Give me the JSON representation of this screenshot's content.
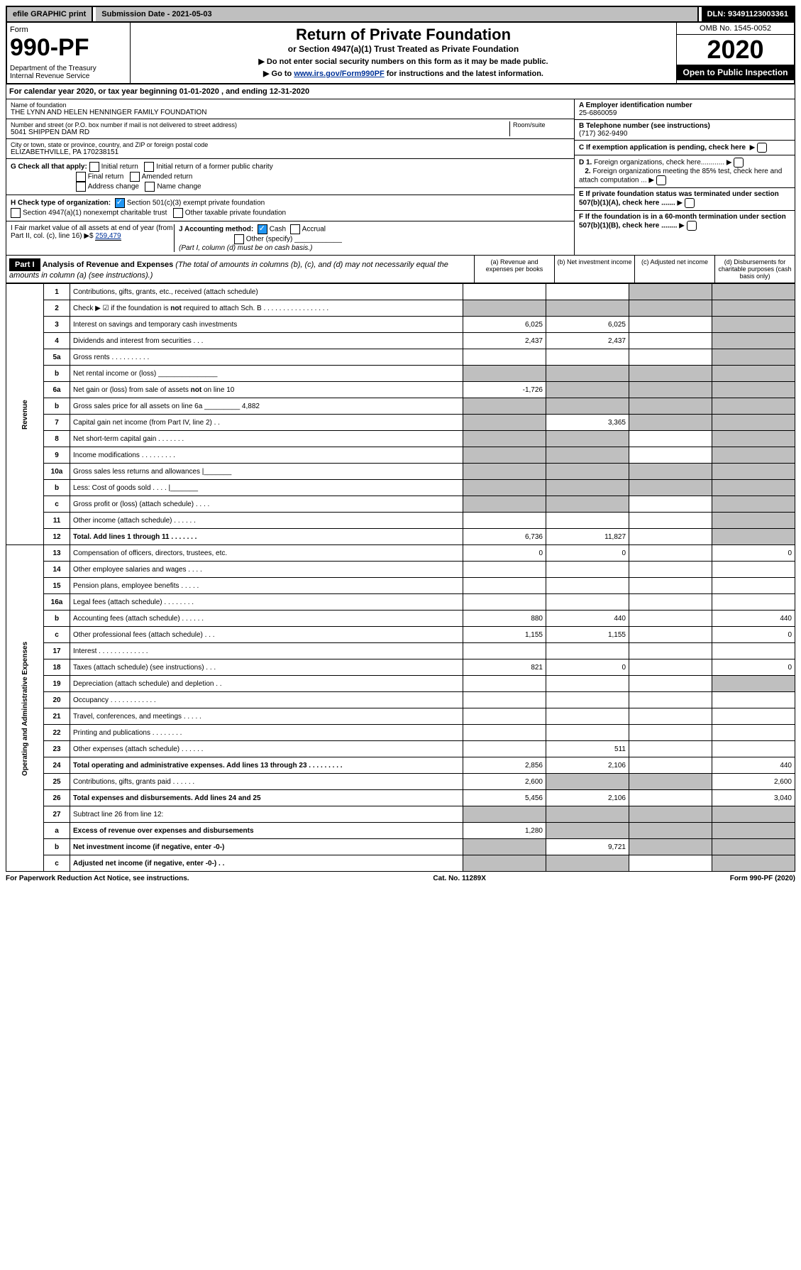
{
  "topbar": {
    "efile": "efile GRAPHIC print",
    "submission": "Submission Date - 2021-05-03",
    "dln": "DLN: 93491123003361"
  },
  "header": {
    "form_label": "Form",
    "form_number": "990-PF",
    "dept": "Department of the Treasury\nInternal Revenue Service",
    "title": "Return of Private Foundation",
    "subtitle": "or Section 4947(a)(1) Trust Treated as Private Foundation",
    "instr1": "▶ Do not enter social security numbers on this form as it may be made public.",
    "instr2_prefix": "▶ Go to ",
    "instr2_link": "www.irs.gov/Form990PF",
    "instr2_suffix": " for instructions and the latest information.",
    "omb": "OMB No. 1545-0052",
    "year": "2020",
    "open": "Open to Public Inspection"
  },
  "calyear": "For calendar year 2020, or tax year beginning 01-01-2020                          , and ending 12-31-2020",
  "foundation": {
    "name_label": "Name of foundation",
    "name": "THE LYNN AND HELEN HENNINGER FAMILY FOUNDATION",
    "addr_label": "Number and street (or P.O. box number if mail is not delivered to street address)",
    "room_label": "Room/suite",
    "addr": "5041 SHIPPEN DAM RD",
    "city_label": "City or town, state or province, country, and ZIP or foreign postal code",
    "city": "ELIZABETHVILLE, PA  170238151",
    "ein_label": "A Employer identification number",
    "ein": "25-6860059",
    "phone_label": "B Telephone number (see instructions)",
    "phone": "(717) 362-9490",
    "c_label": "C If exemption application is pending, check here",
    "d1": "D 1. Foreign organizations, check here............",
    "d2": "2. Foreign organizations meeting the 85% test, check here and attach computation ...",
    "e_label": "E  If private foundation status was terminated under section 507(b)(1)(A), check here .......",
    "f_label": "F  If the foundation is in a 60-month termination under section 507(b)(1)(B), check here ........"
  },
  "g": {
    "label": "G Check all that apply:",
    "opts": [
      "Initial return",
      "Initial return of a former public charity",
      "Final return",
      "Amended return",
      "Address change",
      "Name change"
    ]
  },
  "h": {
    "label": "H Check type of organization:",
    "opt1": "Section 501(c)(3) exempt private foundation",
    "opt2": "Section 4947(a)(1) nonexempt charitable trust",
    "opt3": "Other taxable private foundation"
  },
  "i": {
    "label": "I Fair market value of all assets at end of year (from Part II, col. (c), line 16) ▶$ ",
    "value": "259,479"
  },
  "j": {
    "label": "J Accounting method:",
    "cash": "Cash",
    "accrual": "Accrual",
    "other": "Other (specify)",
    "note": "(Part I, column (d) must be on cash basis.)"
  },
  "part1": {
    "label": "Part I",
    "title": "Analysis of Revenue and Expenses",
    "note": "(The total of amounts in columns (b), (c), and (d) may not necessarily equal the amounts in column (a) (see instructions).)",
    "cols": {
      "a": "(a)    Revenue and expenses per books",
      "b": "(b)   Net investment income",
      "c": "(c)   Adjusted net income",
      "d": "(d)   Disbursements for charitable purposes (cash basis only)"
    }
  },
  "sides": {
    "revenue": "Revenue",
    "expenses": "Operating and Administrative Expenses"
  },
  "rows": [
    {
      "n": "1",
      "d": "Contributions, gifts, grants, etc., received (attach schedule)",
      "a": "",
      "b": "",
      "c": "s",
      "dcol": "s"
    },
    {
      "n": "2",
      "d": "Check ▶ ☑ if the foundation is not required to attach Sch. B  .  .  .  .  .  .  .  .  .  .  .  .  .  .  .  .  .",
      "a": "s",
      "b": "s",
      "c": "s",
      "dcol": "s"
    },
    {
      "n": "3",
      "d": "Interest on savings and temporary cash investments",
      "a": "6,025",
      "b": "6,025",
      "c": "",
      "dcol": "s"
    },
    {
      "n": "4",
      "d": "Dividends and interest from securities    .    .    .",
      "a": "2,437",
      "b": "2,437",
      "c": "",
      "dcol": "s"
    },
    {
      "n": "5a",
      "d": "Gross rents      .    .    .    .    .    .    .    .    .    .",
      "a": "",
      "b": "",
      "c": "",
      "dcol": "s"
    },
    {
      "n": "b",
      "d": "Net rental income or (loss)  _______________",
      "a": "s",
      "b": "s",
      "c": "s",
      "dcol": "s"
    },
    {
      "n": "6a",
      "d": "Net gain or (loss) from sale of assets not on line 10",
      "a": "-1,726",
      "b": "s",
      "c": "s",
      "dcol": "s"
    },
    {
      "n": "b",
      "d": "Gross sales price for all assets on line 6a _________ 4,882",
      "a": "s",
      "b": "s",
      "c": "s",
      "dcol": "s"
    },
    {
      "n": "7",
      "d": "Capital gain net income (from Part IV, line 2)    .    .",
      "a": "s",
      "b": "3,365",
      "c": "s",
      "dcol": "s"
    },
    {
      "n": "8",
      "d": "Net short-term capital gain    .    .    .    .    .    .    .",
      "a": "s",
      "b": "s",
      "c": "",
      "dcol": "s"
    },
    {
      "n": "9",
      "d": "Income modifications   .    .    .    .    .    .    .    .    .",
      "a": "s",
      "b": "s",
      "c": "",
      "dcol": "s"
    },
    {
      "n": "10a",
      "d": "Gross sales less returns and allowances  |_______",
      "a": "s",
      "b": "s",
      "c": "s",
      "dcol": "s"
    },
    {
      "n": "b",
      "d": "Less: Cost of goods sold      .    .    .    .    |_______",
      "a": "s",
      "b": "s",
      "c": "s",
      "dcol": "s"
    },
    {
      "n": "c",
      "d": "Gross profit or (loss) (attach schedule)    .    .    .    .",
      "a": "s",
      "b": "s",
      "c": "",
      "dcol": "s"
    },
    {
      "n": "11",
      "d": "Other income (attach schedule)    .    .    .    .    .    .",
      "a": "",
      "b": "",
      "c": "",
      "dcol": "s"
    },
    {
      "n": "12",
      "d": "Total. Add lines 1 through 11    .    .    .    .    .    .    .",
      "a": "6,736",
      "b": "11,827",
      "c": "",
      "dcol": "s",
      "bold": true
    },
    {
      "n": "13",
      "d": "Compensation of officers, directors, trustees, etc.",
      "a": "0",
      "b": "0",
      "c": "",
      "dcol": "0"
    },
    {
      "n": "14",
      "d": "Other employee salaries and wages     .    .    .    .",
      "a": "",
      "b": "",
      "c": "",
      "dcol": ""
    },
    {
      "n": "15",
      "d": "Pension plans, employee benefits    .    .    .    .    .",
      "a": "",
      "b": "",
      "c": "",
      "dcol": ""
    },
    {
      "n": "16a",
      "d": "Legal fees (attach schedule)  .    .    .    .    .    .    .    .",
      "a": "",
      "b": "",
      "c": "",
      "dcol": ""
    },
    {
      "n": "b",
      "d": "Accounting fees (attach schedule)   .    .    .    .    .    .",
      "a": "880",
      "b": "440",
      "c": "",
      "dcol": "440"
    },
    {
      "n": "c",
      "d": "Other professional fees (attach schedule)     .    .    .",
      "a": "1,155",
      "b": "1,155",
      "c": "",
      "dcol": "0"
    },
    {
      "n": "17",
      "d": "Interest   .    .    .    .    .    .    .    .    .    .    .    .    .",
      "a": "",
      "b": "",
      "c": "",
      "dcol": ""
    },
    {
      "n": "18",
      "d": "Taxes (attach schedule) (see instructions)     .    .    .",
      "a": "821",
      "b": "0",
      "c": "",
      "dcol": "0"
    },
    {
      "n": "19",
      "d": "Depreciation (attach schedule) and depletion    .    .",
      "a": "",
      "b": "",
      "c": "",
      "dcol": "s"
    },
    {
      "n": "20",
      "d": "Occupancy   .    .    .    .    .    .    .    .    .    .    .    .",
      "a": "",
      "b": "",
      "c": "",
      "dcol": ""
    },
    {
      "n": "21",
      "d": "Travel, conferences, and meetings   .    .    .    .    .",
      "a": "",
      "b": "",
      "c": "",
      "dcol": ""
    },
    {
      "n": "22",
      "d": "Printing and publications   .    .    .    .    .    .    .    .",
      "a": "",
      "b": "",
      "c": "",
      "dcol": ""
    },
    {
      "n": "23",
      "d": "Other expenses (attach schedule)    .    .    .    .    .    .",
      "a": "",
      "b": "511",
      "c": "",
      "dcol": ""
    },
    {
      "n": "24",
      "d": "Total operating and administrative expenses. Add lines 13 through 23   .    .    .    .    .    .    .    .    .",
      "a": "2,856",
      "b": "2,106",
      "c": "",
      "dcol": "440",
      "bold": true
    },
    {
      "n": "25",
      "d": "Contributions, gifts, grants paid      .    .    .    .    .    .",
      "a": "2,600",
      "b": "s",
      "c": "s",
      "dcol": "2,600"
    },
    {
      "n": "26",
      "d": "Total expenses and disbursements. Add lines 24 and 25",
      "a": "5,456",
      "b": "2,106",
      "c": "",
      "dcol": "3,040",
      "bold": true
    },
    {
      "n": "27",
      "d": "Subtract line 26 from line 12:",
      "a": "s",
      "b": "s",
      "c": "s",
      "dcol": "s"
    },
    {
      "n": "a",
      "d": "Excess of revenue over expenses and disbursements",
      "a": "1,280",
      "b": "s",
      "c": "s",
      "dcol": "s",
      "bold": true
    },
    {
      "n": "b",
      "d": "Net investment income (if negative, enter -0-)",
      "a": "s",
      "b": "9,721",
      "c": "s",
      "dcol": "s",
      "bold": true
    },
    {
      "n": "c",
      "d": "Adjusted net income (if negative, enter -0-)   .    .",
      "a": "s",
      "b": "s",
      "c": "",
      "dcol": "s",
      "bold": true
    }
  ],
  "footer": {
    "left": "For Paperwork Reduction Act Notice, see instructions.",
    "mid": "Cat. No. 11289X",
    "right": "Form 990-PF (2020)"
  }
}
